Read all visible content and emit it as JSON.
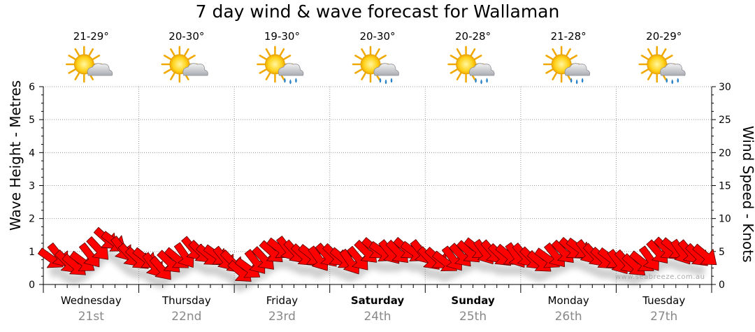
{
  "chart_data": {
    "type": "line",
    "title": "7 day wind & wave forecast for Wallaman",
    "ylabel_left": "Wave Height - Metres",
    "ylabel_right": "Wind Speed - Knots",
    "ylim_left": [
      0,
      6
    ],
    "ylim_right": [
      0,
      30
    ],
    "yticks_left": [
      "0",
      "1",
      "2",
      "3",
      "4",
      "5",
      "6"
    ],
    "yticks_right": [
      "0",
      "5",
      "10",
      "15",
      "20",
      "25",
      "30"
    ],
    "days": [
      {
        "day": "Wednesday",
        "date": "21st",
        "temp": "21-29°",
        "weather": "partly-cloudy",
        "bold": false
      },
      {
        "day": "Thursday",
        "date": "22nd",
        "temp": "20-30°",
        "weather": "partly-cloudy",
        "bold": false
      },
      {
        "day": "Friday",
        "date": "23rd",
        "temp": "19-30°",
        "weather": "showers",
        "bold": false
      },
      {
        "day": "Saturday",
        "date": "24th",
        "temp": "20-30°",
        "weather": "showers",
        "bold": true
      },
      {
        "day": "Sunday",
        "date": "25th",
        "temp": "20-28°",
        "weather": "showers",
        "bold": true
      },
      {
        "day": "Monday",
        "date": "26th",
        "temp": "21-28°",
        "weather": "showers",
        "bold": false
      },
      {
        "day": "Tuesday",
        "date": "27th",
        "temp": "20-29°",
        "weather": "showers",
        "bold": false
      }
    ],
    "series": [
      {
        "name": "Wind speed (knots)",
        "color": "#ff0000",
        "values": [
          4.0,
          4.5,
          3.5,
          3.0,
          3.5,
          4.5,
          5.5,
          7.0,
          6.5,
          5.5,
          4.5,
          4.0,
          4.0,
          3.0,
          2.5,
          3.5,
          4.0,
          4.5,
          5.5,
          5.0,
          4.5,
          4.5,
          4.0,
          3.5,
          2.0,
          2.5,
          3.5,
          4.0,
          5.0,
          5.5,
          5.5,
          5.0,
          4.5,
          4.5,
          4.0,
          4.5,
          4.5,
          4.0,
          3.5,
          4.0,
          5.0,
          5.5,
          5.0,
          5.0,
          5.0,
          5.5,
          5.0,
          5.0,
          4.0,
          4.0,
          3.5,
          4.0,
          4.5,
          5.0,
          5.5,
          5.0,
          5.0,
          4.5,
          4.5,
          4.5,
          4.5,
          4.0,
          3.5,
          4.0,
          4.5,
          5.0,
          5.5,
          5.5,
          5.0,
          4.5,
          4.0,
          4.0,
          3.5,
          3.5,
          3.0,
          3.5,
          4.0,
          5.0,
          5.5,
          5.5,
          5.0,
          5.0,
          4.5,
          4.5
        ],
        "direction_deg": 135
      }
    ],
    "credit": "www.seabreeze.com.au"
  }
}
